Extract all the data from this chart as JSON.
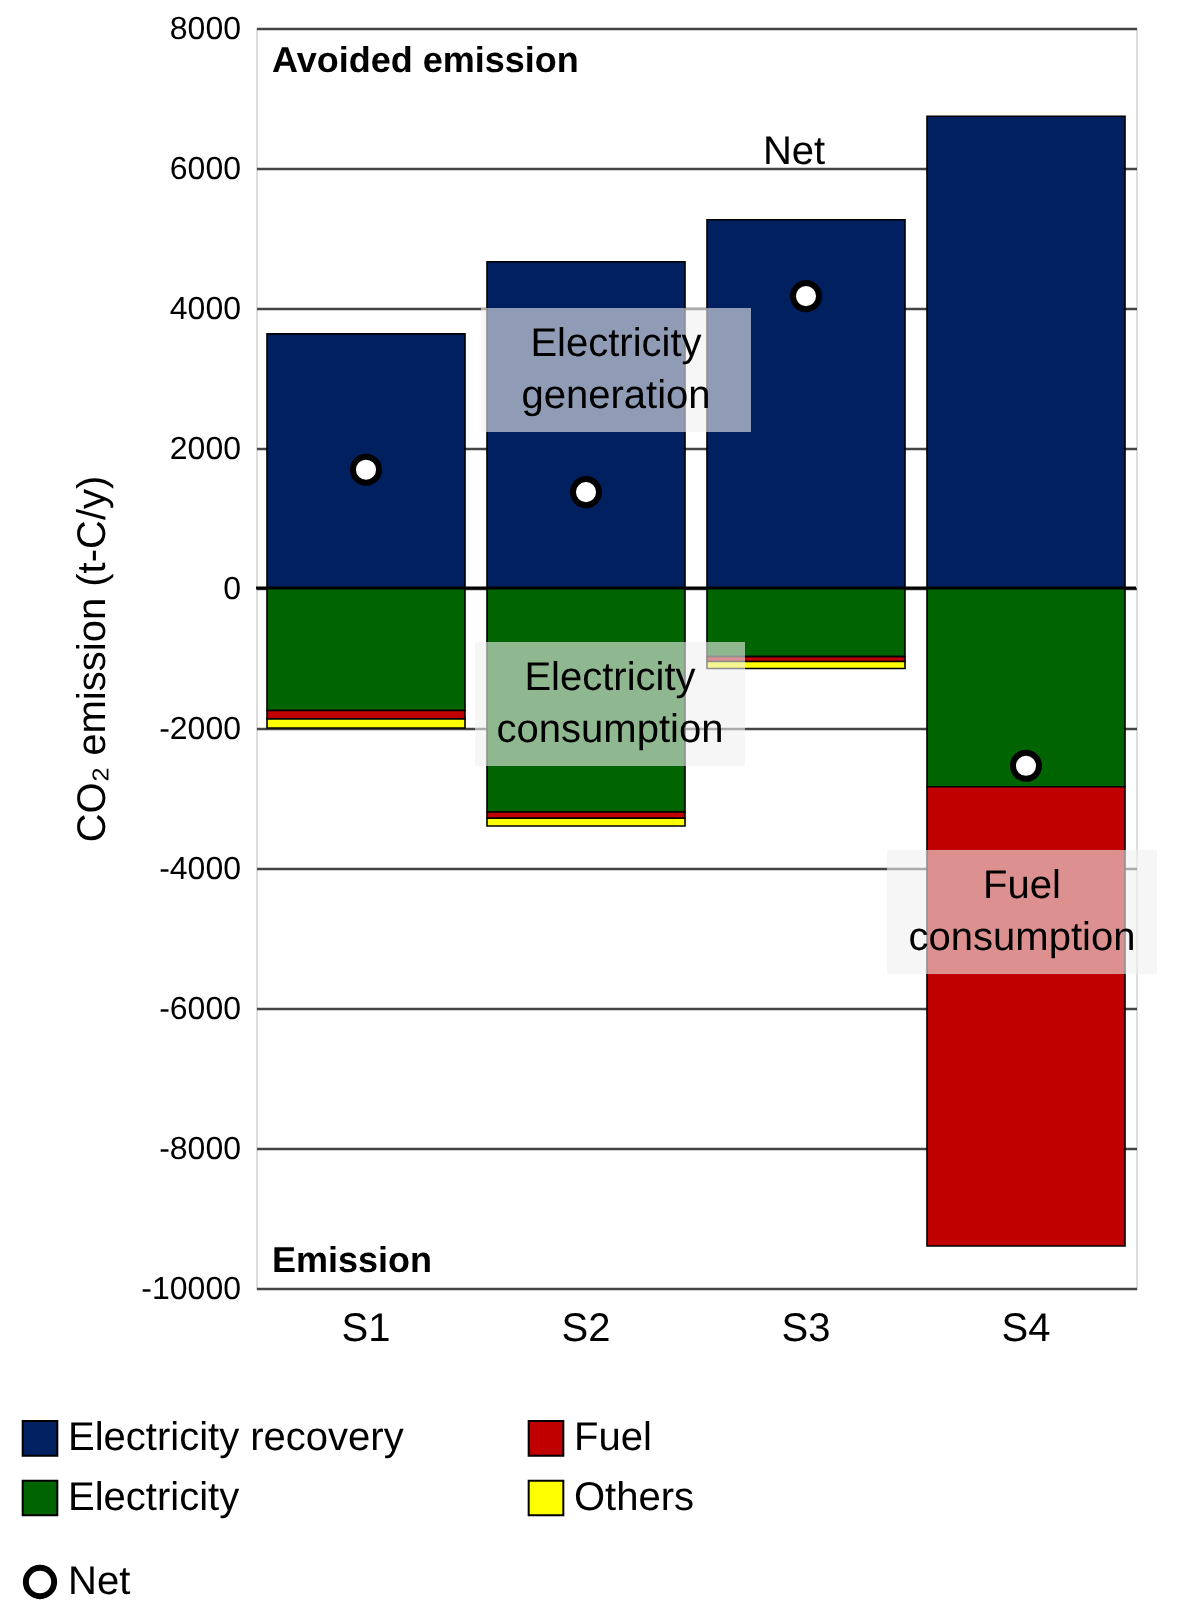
{
  "chart_data": {
    "type": "bar",
    "stacked": true,
    "categories": [
      "S1",
      "S2",
      "S3",
      "S4"
    ],
    "ylabel": "CO₂ emission (t-C/y)",
    "ylim": [
      -10000,
      8000
    ],
    "yticks": [
      -10000,
      -8000,
      -6000,
      -4000,
      -2000,
      0,
      2000,
      4000,
      6000,
      8000
    ],
    "grid": "y",
    "legend": "bottom",
    "series": [
      {
        "name": "Electricity recovery",
        "color": "#002060",
        "values": [
          3630,
          4660,
          5260,
          6740
        ]
      },
      {
        "name": "Electricity",
        "color": "#006400",
        "values": [
          -1750,
          -3200,
          -980,
          -2840
        ]
      },
      {
        "name": "Fuel",
        "color": "#c00000",
        "values": [
          -120,
          -90,
          -70,
          -6560
        ]
      },
      {
        "name": "Others",
        "color": "#ffff00",
        "values": [
          -130,
          -110,
          -100,
          null
        ]
      },
      {
        "name": "Net",
        "type": "scatter",
        "marker": "circle",
        "color": "#ffffff",
        "values": [
          1690,
          1370,
          4170,
          -2540
        ]
      }
    ],
    "annotations": [
      "Avoided emission",
      "Emission",
      "Electricity generation",
      "Electricity consumption",
      "Net",
      "Fuel consumption"
    ]
  }
}
